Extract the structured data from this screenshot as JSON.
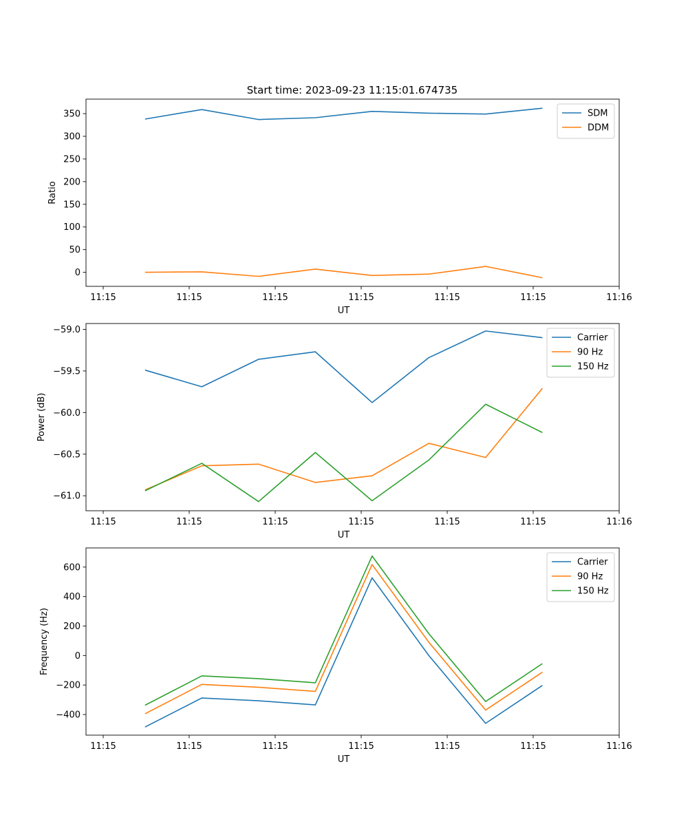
{
  "title": "Start time: 2023-09-23 11:15:01.674735",
  "chart_data": [
    {
      "type": "line",
      "xlabel": "UT",
      "ylabel": "Ratio",
      "xlim": [
        -0.3,
        9
      ],
      "ylim": [
        -31,
        382
      ],
      "xticks": [
        {
          "v": 0,
          "label": "11:15"
        },
        {
          "v": 1.5,
          "label": "11:15"
        },
        {
          "v": 3,
          "label": "11:15"
        },
        {
          "v": 4.5,
          "label": "11:15"
        },
        {
          "v": 6,
          "label": "11:15"
        },
        {
          "v": 7.5,
          "label": "11:15"
        },
        {
          "v": 9,
          "label": "11:16"
        }
      ],
      "yticks": [
        {
          "v": 0,
          "label": "0"
        },
        {
          "v": 50,
          "label": "50"
        },
        {
          "v": 100,
          "label": "100"
        },
        {
          "v": 150,
          "label": "150"
        },
        {
          "v": 200,
          "label": "200"
        },
        {
          "v": 250,
          "label": "250"
        },
        {
          "v": 300,
          "label": "300"
        },
        {
          "v": 350,
          "label": "350"
        }
      ],
      "x": [
        0.73,
        1.72,
        2.71,
        3.7,
        4.69,
        5.68,
        6.67,
        7.66
      ],
      "legend_position": "upper right",
      "series": [
        {
          "name": "SDM",
          "color": "#1f77b4",
          "values": [
            338,
            359,
            337,
            341,
            355,
            351,
            349,
            362
          ]
        },
        {
          "name": "DDM",
          "color": "#ff7f0e",
          "values": [
            0,
            1,
            -9,
            7,
            -7,
            -4,
            13,
            -12
          ]
        }
      ]
    },
    {
      "type": "line",
      "xlabel": "UT",
      "ylabel": "Power (dB)",
      "xlim": [
        -0.3,
        9
      ],
      "ylim": [
        -61.18,
        -58.93
      ],
      "xticks": [
        {
          "v": 0,
          "label": "11:15"
        },
        {
          "v": 1.5,
          "label": "11:15"
        },
        {
          "v": 3,
          "label": "11:15"
        },
        {
          "v": 4.5,
          "label": "11:15"
        },
        {
          "v": 6,
          "label": "11:15"
        },
        {
          "v": 7.5,
          "label": "11:15"
        },
        {
          "v": 9,
          "label": "11:16"
        }
      ],
      "yticks": [
        {
          "v": -61.0,
          "label": "−61.0"
        },
        {
          "v": -60.5,
          "label": "−60.5"
        },
        {
          "v": -60.0,
          "label": "−60.0"
        },
        {
          "v": -59.5,
          "label": "−59.5"
        },
        {
          "v": -59.0,
          "label": "−59.0"
        }
      ],
      "x": [
        0.73,
        1.72,
        2.71,
        3.7,
        4.69,
        5.68,
        6.67,
        7.66
      ],
      "legend_position": "upper right",
      "series": [
        {
          "name": "Carrier",
          "color": "#1f77b4",
          "values": [
            -59.49,
            -59.69,
            -59.36,
            -59.27,
            -59.88,
            -59.34,
            -59.02,
            -59.1
          ]
        },
        {
          "name": "90 Hz",
          "color": "#ff7f0e",
          "values": [
            -60.93,
            -60.64,
            -60.62,
            -60.84,
            -60.76,
            -60.37,
            -60.54,
            -59.71
          ]
        },
        {
          "name": "150 Hz",
          "color": "#2ca02c",
          "values": [
            -60.94,
            -60.61,
            -61.07,
            -60.48,
            -61.06,
            -60.57,
            -59.9,
            -60.24
          ]
        }
      ]
    },
    {
      "type": "line",
      "xlabel": "UT",
      "ylabel": "Frequency (Hz)",
      "xlim": [
        -0.3,
        9
      ],
      "ylim": [
        -540,
        730
      ],
      "xticks": [
        {
          "v": 0,
          "label": "11:15"
        },
        {
          "v": 1.5,
          "label": "11:15"
        },
        {
          "v": 3,
          "label": "11:15"
        },
        {
          "v": 4.5,
          "label": "11:15"
        },
        {
          "v": 6,
          "label": "11:15"
        },
        {
          "v": 7.5,
          "label": "11:15"
        },
        {
          "v": 9,
          "label": "11:16"
        }
      ],
      "yticks": [
        {
          "v": -400,
          "label": "−400"
        },
        {
          "v": -200,
          "label": "−200"
        },
        {
          "v": 0,
          "label": "0"
        },
        {
          "v": 200,
          "label": "200"
        },
        {
          "v": 400,
          "label": "400"
        },
        {
          "v": 600,
          "label": "600"
        }
      ],
      "x": [
        0.73,
        1.72,
        2.71,
        3.7,
        4.69,
        5.68,
        6.67,
        7.66
      ],
      "legend_position": "upper right",
      "series": [
        {
          "name": "Carrier",
          "color": "#1f77b4",
          "values": [
            -485,
            -288,
            -307,
            -335,
            527,
            0,
            -460,
            -203
          ]
        },
        {
          "name": "90 Hz",
          "color": "#ff7f0e",
          "values": [
            -395,
            -196,
            -215,
            -243,
            617,
            90,
            -370,
            -113
          ]
        },
        {
          "name": "150 Hz",
          "color": "#2ca02c",
          "values": [
            -337,
            -138,
            -157,
            -185,
            675,
            148,
            -312,
            -55
          ]
        }
      ]
    }
  ]
}
